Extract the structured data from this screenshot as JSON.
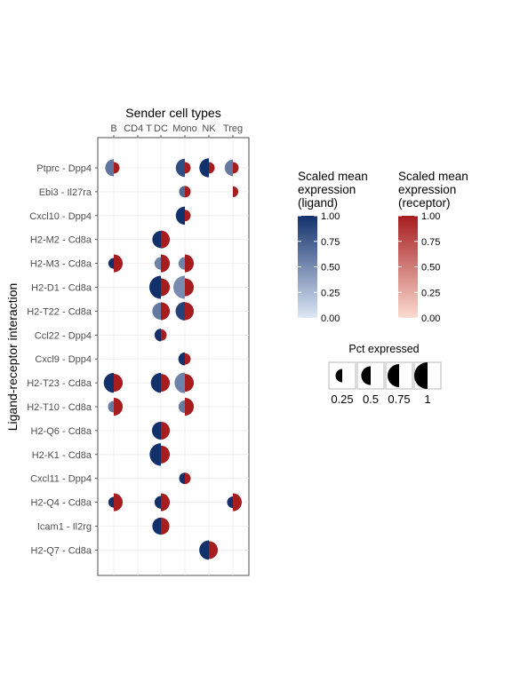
{
  "chart_data": {
    "type": "split-dot",
    "title": "Sender cell types",
    "ylabel": "Ligand-receptor interaction",
    "x_categories": [
      "B",
      "CD4 T",
      "DC",
      "Mono",
      "NK",
      "Treg"
    ],
    "y_categories": [
      "Ptprc - Dpp4",
      "Ebi3 - Il27ra",
      "Cxcl10 - Dpp4",
      "H2-M2 - Cd8a",
      "H2-M3 - Cd8a",
      "H2-D1 - Cd8a",
      "H2-T22 - Cd8a",
      "Ccl22 - Dpp4",
      "Cxcl9 - Dpp4",
      "H2-T23 - Cd8a",
      "H2-T10 - Cd8a",
      "H2-Q6 - Cd8a",
      "H2-K1 - Cd8a",
      "Cxcl11 - Dpp4",
      "H2-Q4 - Cd8a",
      "Icam1 - Il2rg",
      "H2-Q7 - Cd8a"
    ],
    "points": [
      {
        "x": "B",
        "y": "Ptprc - Dpp4",
        "lig_pct": 0.55,
        "lig_expr": 0.62,
        "rec_pct": 0.25,
        "rec_expr": 1.0
      },
      {
        "x": "Mono",
        "y": "Ptprc - Dpp4",
        "lig_pct": 0.62,
        "lig_expr": 0.85,
        "rec_pct": 0.25,
        "rec_expr": 1.0
      },
      {
        "x": "NK",
        "y": "Ptprc - Dpp4",
        "lig_pct": 0.68,
        "lig_expr": 1.0,
        "rec_pct": 0.25,
        "rec_expr": 1.0
      },
      {
        "x": "Treg",
        "y": "Ptprc - Dpp4",
        "lig_pct": 0.5,
        "lig_expr": 0.6,
        "rec_pct": 0.25,
        "rec_expr": 1.0
      },
      {
        "x": "Mono",
        "y": "Ebi3 - Il27ra",
        "lig_pct": 0.25,
        "lig_expr": 0.7,
        "rec_pct": 0.25,
        "rec_expr": 1.0
      },
      {
        "x": "Treg",
        "y": "Ebi3 - Il27ra",
        "lig_pct": 0.0,
        "lig_expr": 0.0,
        "rec_pct": 0.22,
        "rec_expr": 1.0
      },
      {
        "x": "Mono",
        "y": "Cxcl10 - Dpp4",
        "lig_pct": 0.62,
        "lig_expr": 1.0,
        "rec_pct": 0.25,
        "rec_expr": 1.0
      },
      {
        "x": "DC",
        "y": "H2-M2 - Cd8a",
        "lig_pct": 0.55,
        "lig_expr": 1.0,
        "rec_pct": 0.6,
        "rec_expr": 1.0
      },
      {
        "x": "B",
        "y": "H2-M3 - Cd8a",
        "lig_pct": 0.22,
        "lig_expr": 1.0,
        "rec_pct": 0.6,
        "rec_expr": 1.0
      },
      {
        "x": "DC",
        "y": "H2-M3 - Cd8a",
        "lig_pct": 0.3,
        "lig_expr": 0.55,
        "rec_pct": 0.6,
        "rec_expr": 1.0
      },
      {
        "x": "Mono",
        "y": "H2-M3 - Cd8a",
        "lig_pct": 0.3,
        "lig_expr": 0.55,
        "rec_pct": 0.6,
        "rec_expr": 1.0
      },
      {
        "x": "DC",
        "y": "H2-D1 - Cd8a",
        "lig_pct": 1.0,
        "lig_expr": 1.0,
        "rec_pct": 0.6,
        "rec_expr": 1.0
      },
      {
        "x": "Mono",
        "y": "H2-D1 - Cd8a",
        "lig_pct": 1.0,
        "lig_expr": 0.5,
        "rec_pct": 0.6,
        "rec_expr": 1.0
      },
      {
        "x": "DC",
        "y": "H2-T22 - Cd8a",
        "lig_pct": 0.55,
        "lig_expr": 0.6,
        "rec_pct": 0.6,
        "rec_expr": 1.0
      },
      {
        "x": "Mono",
        "y": "H2-T22 - Cd8a",
        "lig_pct": 0.65,
        "lig_expr": 0.9,
        "rec_pct": 0.6,
        "rec_expr": 1.0
      },
      {
        "x": "DC",
        "y": "Ccl22 - Dpp4",
        "lig_pct": 0.3,
        "lig_expr": 1.0,
        "rec_pct": 0.25,
        "rec_expr": 1.0
      },
      {
        "x": "Mono",
        "y": "Cxcl9 - Dpp4",
        "lig_pct": 0.32,
        "lig_expr": 1.0,
        "rec_pct": 0.25,
        "rec_expr": 1.0
      },
      {
        "x": "B",
        "y": "H2-T23 - Cd8a",
        "lig_pct": 0.75,
        "lig_expr": 1.0,
        "rec_pct": 0.6,
        "rec_expr": 1.0
      },
      {
        "x": "DC",
        "y": "H2-T23 - Cd8a",
        "lig_pct": 0.75,
        "lig_expr": 1.0,
        "rec_pct": 0.6,
        "rec_expr": 1.0
      },
      {
        "x": "Mono",
        "y": "H2-T23 - Cd8a",
        "lig_pct": 0.8,
        "lig_expr": 0.55,
        "rec_pct": 0.6,
        "rec_expr": 1.0
      },
      {
        "x": "B",
        "y": "H2-T10 - Cd8a",
        "lig_pct": 0.25,
        "lig_expr": 0.6,
        "rec_pct": 0.6,
        "rec_expr": 1.0
      },
      {
        "x": "Mono",
        "y": "H2-T10 - Cd8a",
        "lig_pct": 0.3,
        "lig_expr": 0.6,
        "rec_pct": 0.6,
        "rec_expr": 1.0
      },
      {
        "x": "DC",
        "y": "H2-Q6 - Cd8a",
        "lig_pct": 0.6,
        "lig_expr": 1.0,
        "rec_pct": 0.6,
        "rec_expr": 1.0
      },
      {
        "x": "DC",
        "y": "H2-K1 - Cd8a",
        "lig_pct": 0.95,
        "lig_expr": 1.0,
        "rec_pct": 0.6,
        "rec_expr": 1.0
      },
      {
        "x": "Mono",
        "y": "Cxcl11 - Dpp4",
        "lig_pct": 0.25,
        "lig_expr": 1.0,
        "rec_pct": 0.25,
        "rec_expr": 1.0
      },
      {
        "x": "B",
        "y": "H2-Q4 - Cd8a",
        "lig_pct": 0.22,
        "lig_expr": 1.0,
        "rec_pct": 0.6,
        "rec_expr": 1.0
      },
      {
        "x": "DC",
        "y": "H2-Q4 - Cd8a",
        "lig_pct": 0.3,
        "lig_expr": 1.0,
        "rec_pct": 0.6,
        "rec_expr": 1.0
      },
      {
        "x": "Treg",
        "y": "H2-Q4 - Cd8a",
        "lig_pct": 0.25,
        "lig_expr": 1.0,
        "rec_pct": 0.6,
        "rec_expr": 1.0
      },
      {
        "x": "DC",
        "y": "Icam1 - Il2rg",
        "lig_pct": 0.55,
        "lig_expr": 1.0,
        "rec_pct": 0.55,
        "rec_expr": 1.0
      },
      {
        "x": "NK",
        "y": "H2-Q7 - Cd8a",
        "lig_pct": 0.7,
        "lig_expr": 1.0,
        "rec_pct": 0.6,
        "rec_expr": 1.0
      }
    ],
    "legend": {
      "ligand_title": [
        "Scaled mean",
        "expression",
        "(ligand)"
      ],
      "receptor_title": [
        "Scaled mean",
        "expression",
        "(receptor)"
      ],
      "color_ticks": [
        "1.00",
        "0.75",
        "0.50",
        "0.25",
        "0.00"
      ],
      "ligand_colors": {
        "low": "#dde7f6",
        "high": "#12316b"
      },
      "receptor_colors": {
        "low": "#fbdcd0",
        "high": "#a61c1f"
      },
      "size_title": "Pct expressed",
      "size_keys": [
        0.25,
        0.5,
        0.75,
        1
      ],
      "size_labels": [
        "0.25",
        "0.5",
        "0.75",
        "1"
      ]
    },
    "grid": true
  }
}
